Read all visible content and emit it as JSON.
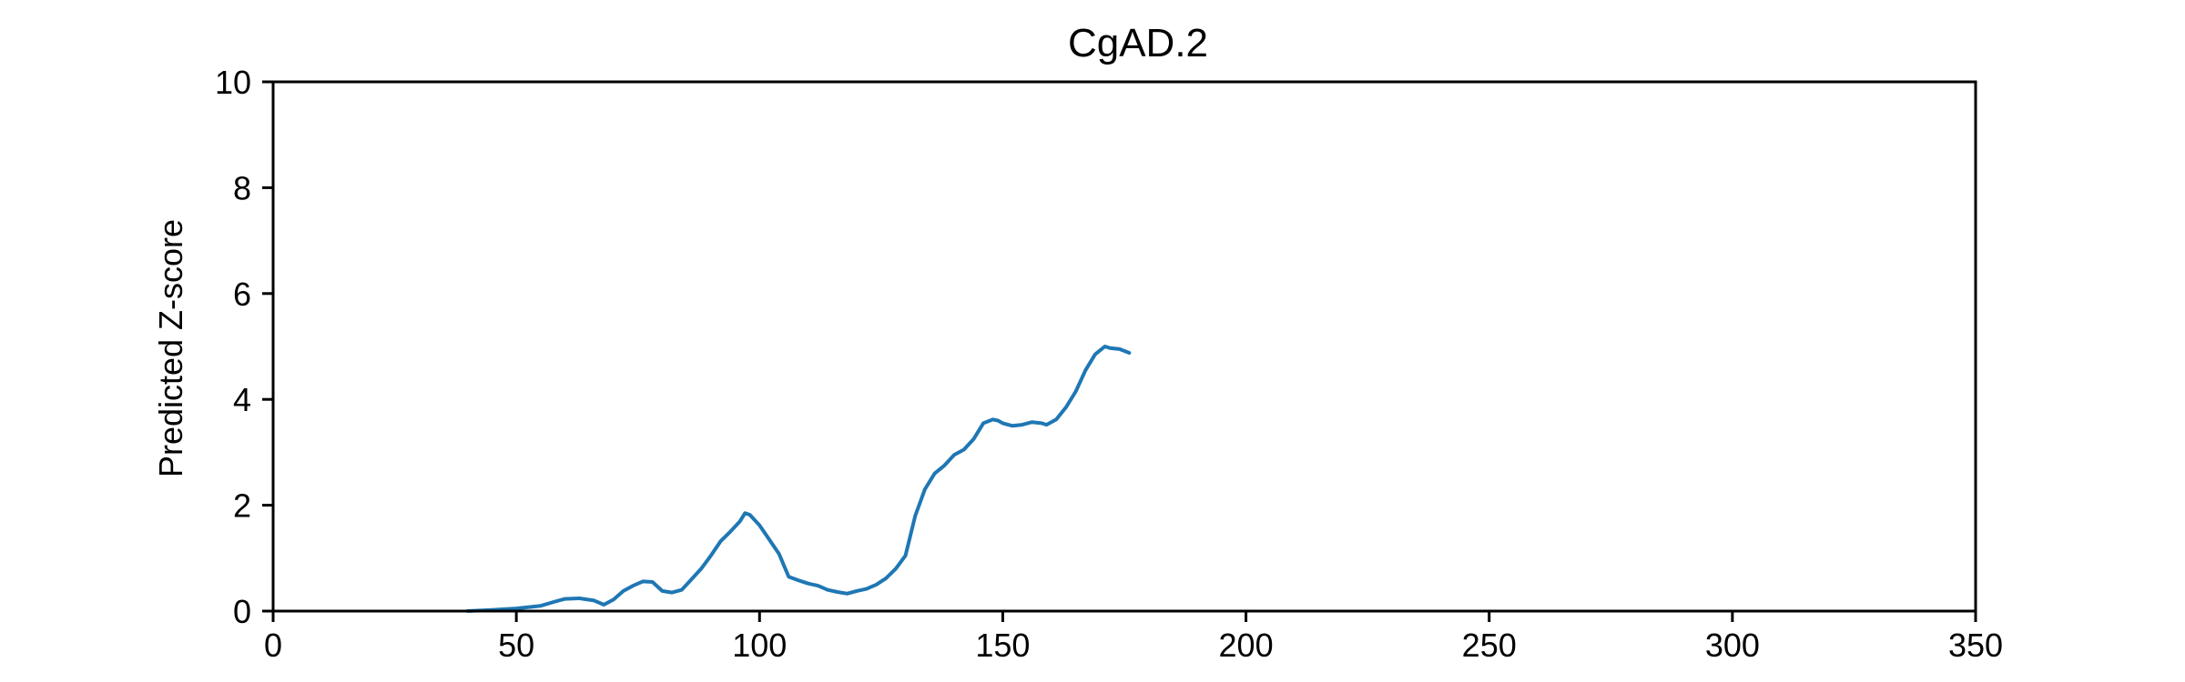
{
  "chart_data": {
    "type": "line",
    "title": "CgAD.2",
    "xlabel": "",
    "ylabel": "Predicted Z-score",
    "xlim": [
      0,
      350
    ],
    "ylim": [
      0,
      10
    ],
    "xticks": [
      0,
      50,
      100,
      150,
      200,
      250,
      300,
      350
    ],
    "yticks": [
      0,
      2,
      4,
      6,
      8,
      10
    ],
    "grid": false,
    "series_color": "#1f77b4",
    "series": [
      {
        "x": [
          40,
          45,
          50,
          55,
          58,
          60,
          63,
          66,
          68,
          70,
          72,
          74,
          76,
          78,
          80,
          82,
          84,
          86,
          88,
          90,
          92,
          94,
          96,
          97,
          98,
          100,
          102,
          104,
          106,
          108,
          110,
          112,
          114,
          116,
          118,
          120,
          122,
          124,
          126,
          128,
          130,
          132,
          134,
          136,
          138,
          140,
          142,
          144,
          146,
          148,
          149,
          150,
          152,
          154,
          156,
          158,
          159,
          161,
          163,
          165,
          167,
          169,
          171,
          172,
          174,
          176
        ],
        "y": [
          0,
          0.02,
          0.05,
          0.1,
          0.18,
          0.23,
          0.24,
          0.2,
          0.12,
          0.22,
          0.38,
          0.48,
          0.56,
          0.55,
          0.38,
          0.35,
          0.4,
          0.6,
          0.8,
          1.05,
          1.32,
          1.5,
          1.7,
          1.85,
          1.82,
          1.62,
          1.35,
          1.08,
          0.65,
          0.58,
          0.52,
          0.48,
          0.4,
          0.36,
          0.33,
          0.38,
          0.42,
          0.5,
          0.62,
          0.8,
          1.05,
          1.8,
          2.3,
          2.6,
          2.75,
          2.95,
          3.05,
          3.25,
          3.55,
          3.62,
          3.6,
          3.55,
          3.5,
          3.52,
          3.57,
          3.55,
          3.52,
          3.62,
          3.85,
          4.15,
          4.55,
          4.85,
          5.0,
          4.97,
          4.95,
          4.88
        ]
      }
    ]
  }
}
